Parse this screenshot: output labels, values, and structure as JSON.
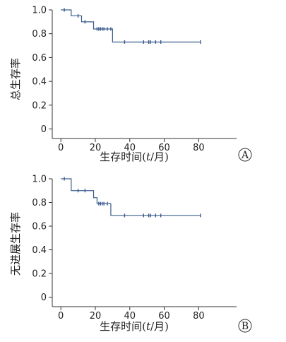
{
  "chart_data": [
    {
      "type": "line",
      "panel_label": "A",
      "xlabel_prefix": "生存时间(",
      "xlabel_var": "t",
      "xlabel_suffix": "/月)",
      "ylabel": "总生存率",
      "xlim": [
        -5,
        102
      ],
      "ylim": [
        -0.08,
        1.0
      ],
      "x_ticks": [
        0,
        20,
        40,
        60,
        80
      ],
      "y_ticks": [
        0,
        0.2,
        0.4,
        0.6,
        0.8,
        1.0
      ],
      "x_tick_labels": [
        "0",
        "20",
        "40",
        "60",
        "80"
      ],
      "y_tick_labels": [
        "0",
        "0.2",
        "0.4",
        "0.6",
        "0.8",
        "1.0"
      ],
      "steps": [
        [
          0,
          1.0
        ],
        [
          6,
          0.95
        ],
        [
          12,
          0.9
        ],
        [
          19,
          0.84
        ],
        [
          30,
          0.73
        ],
        [
          81,
          0.73
        ]
      ],
      "censored": [
        [
          2,
          1.0
        ],
        [
          10,
          0.95
        ],
        [
          14,
          0.9
        ],
        [
          21,
          0.84
        ],
        [
          22,
          0.84
        ],
        [
          23,
          0.84
        ],
        [
          24,
          0.84
        ],
        [
          25,
          0.84
        ],
        [
          27,
          0.84
        ],
        [
          29,
          0.84
        ],
        [
          37,
          0.73
        ],
        [
          48,
          0.73
        ],
        [
          51,
          0.73
        ],
        [
          52,
          0.73
        ],
        [
          55,
          0.73
        ],
        [
          58,
          0.73
        ],
        [
          81,
          0.73
        ]
      ]
    },
    {
      "type": "line",
      "panel_label": "B",
      "xlabel_prefix": "生存时间(",
      "xlabel_var": "t",
      "xlabel_suffix": "/月)",
      "ylabel": "无进展生存率",
      "xlim": [
        -5,
        102
      ],
      "ylim": [
        -0.08,
        1.0
      ],
      "x_ticks": [
        0,
        20,
        40,
        60,
        80
      ],
      "y_ticks": [
        0,
        0.2,
        0.4,
        0.6,
        0.8,
        1.0
      ],
      "x_tick_labels": [
        "0",
        "20",
        "40",
        "60",
        "80"
      ],
      "y_tick_labels": [
        "0",
        "0.2",
        "0.4",
        "0.6",
        "0.8",
        "1.0"
      ],
      "steps": [
        [
          0,
          1.0
        ],
        [
          6,
          0.9
        ],
        [
          19,
          0.84
        ],
        [
          21,
          0.79
        ],
        [
          29,
          0.69
        ],
        [
          81,
          0.69
        ]
      ],
      "censored": [
        [
          2,
          1.0
        ],
        [
          10,
          0.9
        ],
        [
          14,
          0.9
        ],
        [
          22,
          0.79
        ],
        [
          23,
          0.79
        ],
        [
          24,
          0.79
        ],
        [
          25,
          0.79
        ],
        [
          27,
          0.79
        ],
        [
          37,
          0.69
        ],
        [
          48,
          0.69
        ],
        [
          51,
          0.69
        ],
        [
          52,
          0.69
        ],
        [
          55,
          0.69
        ],
        [
          58,
          0.69
        ],
        [
          81,
          0.69
        ]
      ]
    }
  ]
}
